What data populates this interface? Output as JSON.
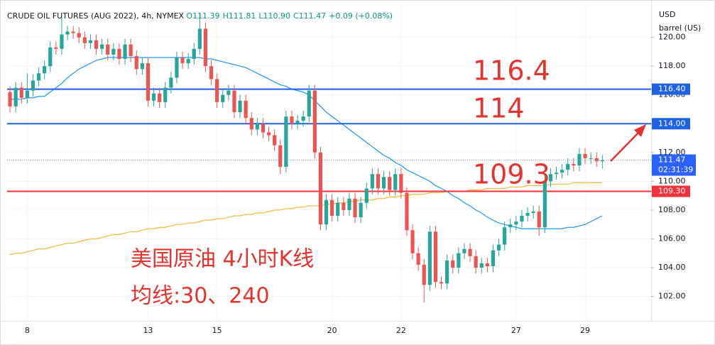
{
  "chart_data": {
    "type": "candlestick",
    "title": "CRUDE OIL FUTURES (AUG 2022), 4h, NYMEX",
    "status": [
      "O111.39",
      "H111.81",
      "L110.90",
      "C111.47",
      "+0.09 (+0.08%)"
    ],
    "currency": "USD",
    "unit": "barrel (US)",
    "up_color": "#26a69a",
    "down_color": "#ef5350",
    "grid": true,
    "ylim": [
      100.4,
      122.2
    ],
    "yticks": [
      {
        "value": 102,
        "label": "102.00"
      },
      {
        "value": 104,
        "label": "104.00"
      },
      {
        "value": 106,
        "label": "106.00"
      },
      {
        "value": 108,
        "label": "108.00"
      },
      {
        "value": 110,
        "label": "110.00"
      },
      {
        "value": 112,
        "label": "112.00"
      },
      {
        "value": 114,
        "label": "114.00"
      },
      {
        "value": 116,
        "label": "116.00"
      },
      {
        "value": 118,
        "label": "118.00"
      },
      {
        "value": 120,
        "label": "120.00"
      }
    ],
    "categories": [
      null,
      null,
      null,
      "8",
      null,
      null,
      null,
      null,
      null,
      null,
      null,
      null,
      null,
      null,
      null,
      null,
      null,
      null,
      null,
      null,
      null,
      null,
      null,
      null,
      "13",
      null,
      null,
      null,
      null,
      null,
      null,
      null,
      null,
      null,
      null,
      null,
      "15",
      null,
      null,
      null,
      null,
      null,
      null,
      null,
      null,
      null,
      null,
      null,
      null,
      null,
      null,
      null,
      null,
      null,
      null,
      null,
      "20",
      null,
      null,
      null,
      null,
      null,
      null,
      null,
      null,
      null,
      null,
      null,
      "22",
      null,
      null,
      null,
      null,
      null,
      null,
      null,
      null,
      null,
      null,
      null,
      null,
      null,
      null,
      null,
      null,
      null,
      null,
      null,
      "27",
      null,
      null,
      null,
      null,
      null,
      null,
      null,
      null,
      null,
      null,
      null,
      "29",
      null,
      null,
      null
    ],
    "open": [
      116.2,
      115.2,
      116.5,
      115.8,
      116.3,
      117.0,
      117.5,
      118.0,
      119.3,
      119.2,
      120.2,
      120.4,
      120.3,
      120.0,
      119.6,
      119.8,
      119.2,
      119.5,
      118.8,
      119.2,
      118.5,
      119.5,
      118.7,
      117.8,
      118.2,
      115.6,
      116.1,
      115.5,
      116.5,
      117.2,
      118.6,
      118.2,
      118.5,
      119.2,
      120.6,
      118.0,
      117.1,
      115.5,
      116.0,
      116.3,
      114.8,
      115.6,
      114.4,
      113.6,
      114.0,
      113.4,
      113.2,
      112.5,
      111.0,
      114.5,
      114.0,
      114.2,
      114.5,
      116.3,
      112.0,
      107.0,
      108.7,
      107.6,
      108.5,
      108.0,
      108.8,
      107.5,
      108.5,
      109.5,
      110.5,
      109.5,
      110.3,
      109.4,
      110.5,
      109.2,
      106.6,
      105.0,
      104.2,
      102.8,
      106.5,
      103.0,
      102.9,
      104.5,
      104.0,
      105.0,
      105.3,
      104.8,
      104.0,
      104.3,
      104.1,
      105.2,
      105.6,
      106.8,
      107.0,
      107.2,
      107.6,
      107.8,
      107.9,
      106.8,
      110.0,
      110.5,
      110.6,
      110.8,
      111.2,
      111.1,
      111.9,
      111.6,
      111.6,
      111.39
    ],
    "high": [
      116.6,
      116.9,
      116.9,
      117.5,
      117.4,
      117.9,
      118.4,
      119.7,
      119.7,
      121.5,
      120.8,
      120.8,
      120.7,
      120.4,
      120.2,
      120.2,
      119.9,
      119.9,
      119.6,
      119.6,
      119.9,
      119.9,
      119.1,
      118.6,
      118.6,
      116.5,
      116.5,
      116.9,
      117.6,
      119.0,
      119.0,
      118.9,
      119.6,
      121.7,
      121.0,
      118.4,
      117.5,
      116.4,
      116.7,
      116.7,
      116.0,
      116.0,
      114.8,
      114.4,
      114.4,
      113.8,
      113.6,
      112.9,
      114.9,
      114.9,
      114.6,
      114.9,
      116.7,
      116.7,
      112.4,
      109.1,
      109.1,
      108.9,
      108.9,
      109.2,
      109.2,
      108.9,
      109.9,
      110.9,
      110.9,
      110.7,
      110.7,
      110.9,
      110.9,
      109.6,
      107.0,
      105.4,
      104.6,
      106.9,
      106.9,
      103.4,
      104.9,
      104.9,
      105.4,
      105.7,
      105.7,
      105.2,
      104.7,
      104.7,
      105.6,
      106.0,
      107.2,
      107.4,
      107.6,
      108.0,
      108.2,
      108.3,
      108.3,
      110.4,
      110.9,
      111.0,
      111.2,
      111.6,
      111.6,
      112.3,
      112.3,
      112.0,
      112.0,
      111.81
    ],
    "low": [
      114.8,
      114.8,
      115.4,
      115.4,
      115.9,
      116.6,
      117.1,
      117.6,
      118.8,
      118.8,
      119.8,
      119.9,
      119.6,
      119.2,
      119.2,
      118.8,
      118.8,
      118.4,
      118.4,
      118.1,
      118.1,
      118.3,
      117.4,
      117.4,
      115.2,
      115.2,
      115.1,
      115.1,
      116.1,
      116.8,
      117.8,
      117.8,
      118.1,
      118.8,
      117.6,
      116.7,
      115.1,
      115.1,
      115.6,
      114.4,
      114.4,
      114.0,
      113.2,
      113.2,
      113.0,
      112.8,
      112.1,
      110.5,
      110.6,
      113.6,
      113.6,
      113.8,
      114.1,
      111.6,
      106.6,
      106.6,
      107.2,
      107.2,
      107.6,
      107.6,
      107.1,
      107.1,
      108.1,
      109.1,
      109.1,
      109.1,
      109.0,
      109.0,
      108.8,
      106.2,
      104.6,
      103.8,
      101.6,
      102.4,
      102.6,
      102.5,
      102.5,
      103.6,
      103.6,
      104.6,
      104.4,
      103.6,
      103.6,
      103.7,
      103.7,
      104.8,
      105.2,
      106.4,
      106.6,
      106.8,
      107.2,
      107.4,
      106.2,
      106.4,
      109.6,
      110.1,
      110.2,
      110.4,
      110.7,
      110.7,
      111.2,
      111.2,
      111.0,
      110.9
    ],
    "close": [
      115.2,
      116.5,
      115.8,
      116.3,
      117.0,
      117.5,
      118.0,
      119.3,
      119.2,
      120.2,
      120.4,
      120.3,
      120.0,
      119.6,
      119.8,
      119.2,
      119.5,
      118.8,
      119.2,
      118.5,
      119.5,
      118.7,
      117.8,
      118.2,
      115.6,
      116.1,
      115.5,
      116.5,
      117.2,
      118.6,
      118.2,
      118.5,
      119.2,
      120.6,
      118.0,
      117.1,
      115.5,
      116.0,
      116.3,
      114.8,
      115.6,
      114.4,
      113.6,
      114.0,
      113.4,
      113.2,
      112.5,
      111.0,
      114.5,
      114.0,
      114.2,
      114.5,
      116.3,
      112.0,
      107.0,
      108.7,
      107.6,
      108.5,
      108.0,
      108.8,
      107.5,
      108.5,
      109.5,
      110.5,
      109.5,
      110.3,
      109.4,
      110.5,
      109.2,
      106.6,
      105.0,
      104.2,
      102.8,
      106.5,
      103.0,
      102.9,
      104.5,
      104.0,
      105.0,
      105.3,
      104.8,
      104.0,
      104.3,
      104.1,
      105.2,
      105.6,
      106.8,
      107.0,
      107.2,
      107.6,
      107.8,
      107.9,
      106.8,
      110.0,
      110.5,
      110.6,
      110.8,
      111.2,
      111.1,
      111.9,
      111.6,
      111.6,
      111.39,
      111.47
    ],
    "moving_averages": [
      {
        "color": "#2196f3",
        "values": [
          115.7,
          115.7,
          115.7,
          115.8,
          115.8,
          115.9,
          115.9,
          116.2,
          116.5,
          116.8,
          117.2,
          117.5,
          117.8,
          118.0,
          118.2,
          118.4,
          118.5,
          118.6,
          118.6,
          118.6,
          118.6,
          118.6,
          118.6,
          118.6,
          118.6,
          118.6,
          118.6,
          118.6,
          118.6,
          118.6,
          118.6,
          118.6,
          118.6,
          118.6,
          118.5,
          118.5,
          118.4,
          118.3,
          118.2,
          118.1,
          118.0,
          117.9,
          117.7,
          117.5,
          117.3,
          117.1,
          116.9,
          116.7,
          116.6,
          116.4,
          116.3,
          116.2,
          116.0,
          115.6,
          115.2,
          114.8,
          114.5,
          114.2,
          113.9,
          113.6,
          113.3,
          113.0,
          112.7,
          112.4,
          112.1,
          111.8,
          111.6,
          111.3,
          111.1,
          110.8,
          110.6,
          110.4,
          110.2,
          110.0,
          109.7,
          109.5,
          109.3,
          109.0,
          108.8,
          108.5,
          108.3,
          108.0,
          107.8,
          107.5,
          107.3,
          107.1,
          107.0,
          106.9,
          106.8,
          106.7,
          106.7,
          106.7,
          106.7,
          106.7,
          106.7,
          106.7,
          106.7,
          106.8,
          106.8,
          106.9,
          107.0,
          107.2,
          107.4,
          107.6
        ]
      },
      {
        "color": "#f5b841",
        "values": [
          104.9,
          105.0,
          105.0,
          105.1,
          105.2,
          105.3,
          105.3,
          105.4,
          105.5,
          105.6,
          105.7,
          105.7,
          105.8,
          105.9,
          106.0,
          106.0,
          106.1,
          106.2,
          106.3,
          106.3,
          106.4,
          106.5,
          106.5,
          106.6,
          106.7,
          106.7,
          106.8,
          106.8,
          106.9,
          107.0,
          107.0,
          107.1,
          107.1,
          107.2,
          107.3,
          107.3,
          107.4,
          107.4,
          107.5,
          107.6,
          107.6,
          107.7,
          107.7,
          107.8,
          107.8,
          107.9,
          108.0,
          108.0,
          108.1,
          108.1,
          108.2,
          108.2,
          108.3,
          108.3,
          108.3,
          108.4,
          108.4,
          108.5,
          108.5,
          108.6,
          108.6,
          108.7,
          108.7,
          108.7,
          108.8,
          108.8,
          108.9,
          108.9,
          109.0,
          109.0,
          109.1,
          109.1,
          109.1,
          109.2,
          109.2,
          109.2,
          109.3,
          109.3,
          109.3,
          109.3,
          109.4,
          109.4,
          109.4,
          109.5,
          109.5,
          109.5,
          109.5,
          109.6,
          109.6,
          109.6,
          109.7,
          109.7,
          109.7,
          109.7,
          109.8,
          109.8,
          109.8,
          109.8,
          109.9,
          109.9,
          109.9,
          109.9,
          109.9,
          109.9
        ]
      }
    ],
    "levels": [
      {
        "value": 116.4,
        "label": "116.40",
        "color": "#1f62e0"
      },
      {
        "value": 114,
        "label": "114.00",
        "color": "#1f62e0"
      },
      {
        "value": 109.3,
        "label": "109.30",
        "color": "#f0323c"
      }
    ],
    "last_price": {
      "value": 111.47,
      "countdown": "02:31:39",
      "color": "#2962ff"
    },
    "annotations": [
      "116.4",
      "114",
      "109.3",
      "美国原油 4小时K线",
      "均线:30、240"
    ]
  }
}
